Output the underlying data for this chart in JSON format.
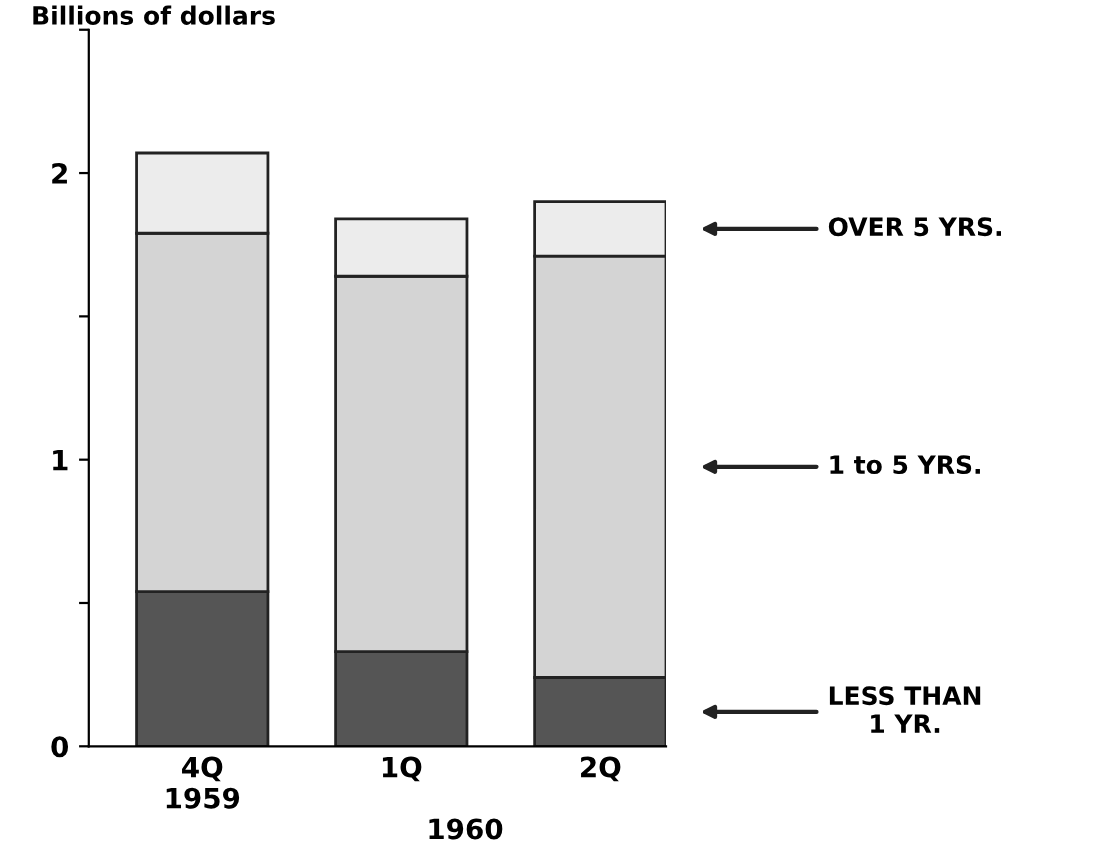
{
  "chart_data": {
    "type": "bar",
    "stacked": true,
    "ylabel": "Billions of dollars",
    "categories": [
      "4Q\n1959",
      "1Q",
      "2Q"
    ],
    "series": [
      {
        "name": "LESS THAN\n1 YR.",
        "color": "#555555",
        "values": [
          0.54,
          0.33,
          0.24
        ]
      },
      {
        "name": "1 to 5 YRS.",
        "color": "#d4d4d4",
        "values": [
          1.25,
          1.31,
          1.47
        ]
      },
      {
        "name": "OVER 5 YRS.",
        "color": "#ececec",
        "values": [
          0.28,
          0.2,
          0.19
        ]
      }
    ],
    "ylim": [
      0,
      2.5
    ],
    "yticks": [
      0,
      {
        "value": 0.5,
        "label": null
      },
      1,
      {
        "value": 1.5,
        "label": null
      },
      2,
      {
        "value": 2.5,
        "label": null
      }
    ],
    "annotations": [
      "1960"
    ],
    "grid": false,
    "legend": "right"
  }
}
